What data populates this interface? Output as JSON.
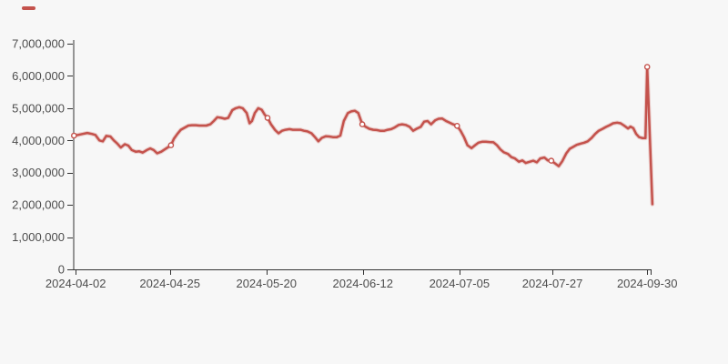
{
  "page": {
    "background": "#f7f7f7"
  },
  "legend": {
    "icon": "line-dash-icon",
    "color": "#c4524c",
    "position": "top-left"
  },
  "chart_data": {
    "type": "line",
    "title": "",
    "grid": false,
    "colors": {
      "line": "#c4524c",
      "marker_fill": "#ffffff",
      "axis": "#333333",
      "label": "#4d4d4d"
    },
    "x_axis": {
      "kind": "time",
      "tick_labels": [
        "2024-04-02",
        "2024-04-25",
        "2024-05-20",
        "2024-06-12",
        "2024-07-05",
        "2024-07-27",
        "2024-09-30"
      ],
      "tick_positions": [
        0.005,
        0.168,
        0.335,
        0.502,
        0.669,
        0.83,
        0.994
      ],
      "closed_end": true
    },
    "y_axis": {
      "tick_labels": [
        "0",
        "1,000,000",
        "2,000,000",
        "3,000,000",
        "4,000,000",
        "5,000,000",
        "6,000,000",
        "7,000,000"
      ],
      "tick_values": [
        0,
        1000000,
        2000000,
        3000000,
        4000000,
        5000000,
        6000000,
        7000000
      ],
      "range": [
        0,
        7000000
      ]
    },
    "marked_points": [
      {
        "date": "2024-04-02",
        "value": 4150000,
        "x": 0.002
      },
      {
        "date": "2024-04-25",
        "value": 3850000,
        "x": 0.17
      },
      {
        "date": "2024-05-20",
        "value": 4700000,
        "x": 0.337
      },
      {
        "date": "2024-06-12",
        "value": 4500000,
        "x": 0.501
      },
      {
        "date": "2024-07-05",
        "value": 4450000,
        "x": 0.665
      },
      {
        "date": "2024-07-27",
        "value": 3370000,
        "x": 0.828
      },
      {
        "date": "2024-09-30",
        "value": 6280000,
        "x": 0.994
      }
    ],
    "series": [
      {
        "name": "",
        "marker": "hollow-circle",
        "points": [
          [
            0.002,
            4150000
          ],
          [
            0.009,
            4170000
          ],
          [
            0.017,
            4200000
          ],
          [
            0.025,
            4230000
          ],
          [
            0.033,
            4200000
          ],
          [
            0.039,
            4170000
          ],
          [
            0.046,
            4000000
          ],
          [
            0.052,
            3970000
          ],
          [
            0.058,
            4140000
          ],
          [
            0.065,
            4120000
          ],
          [
            0.071,
            4000000
          ],
          [
            0.077,
            3900000
          ],
          [
            0.083,
            3780000
          ],
          [
            0.09,
            3880000
          ],
          [
            0.096,
            3840000
          ],
          [
            0.102,
            3700000
          ],
          [
            0.109,
            3650000
          ],
          [
            0.115,
            3660000
          ],
          [
            0.121,
            3620000
          ],
          [
            0.128,
            3700000
          ],
          [
            0.134,
            3750000
          ],
          [
            0.14,
            3700000
          ],
          [
            0.146,
            3600000
          ],
          [
            0.153,
            3650000
          ],
          [
            0.159,
            3720000
          ],
          [
            0.165,
            3790000
          ],
          [
            0.17,
            3850000
          ],
          [
            0.175,
            4050000
          ],
          [
            0.181,
            4200000
          ],
          [
            0.187,
            4330000
          ],
          [
            0.194,
            4400000
          ],
          [
            0.2,
            4460000
          ],
          [
            0.206,
            4470000
          ],
          [
            0.213,
            4470000
          ],
          [
            0.219,
            4460000
          ],
          [
            0.225,
            4460000
          ],
          [
            0.231,
            4460000
          ],
          [
            0.238,
            4500000
          ],
          [
            0.244,
            4600000
          ],
          [
            0.25,
            4720000
          ],
          [
            0.257,
            4700000
          ],
          [
            0.263,
            4670000
          ],
          [
            0.269,
            4700000
          ],
          [
            0.276,
            4940000
          ],
          [
            0.282,
            5000000
          ],
          [
            0.288,
            5030000
          ],
          [
            0.294,
            5000000
          ],
          [
            0.301,
            4850000
          ],
          [
            0.306,
            4530000
          ],
          [
            0.31,
            4600000
          ],
          [
            0.315,
            4850000
          ],
          [
            0.321,
            5000000
          ],
          [
            0.327,
            4950000
          ],
          [
            0.332,
            4800000
          ],
          [
            0.337,
            4700000
          ],
          [
            0.343,
            4500000
          ],
          [
            0.35,
            4320000
          ],
          [
            0.356,
            4220000
          ],
          [
            0.362,
            4300000
          ],
          [
            0.368,
            4330000
          ],
          [
            0.375,
            4350000
          ],
          [
            0.381,
            4330000
          ],
          [
            0.387,
            4330000
          ],
          [
            0.394,
            4330000
          ],
          [
            0.4,
            4300000
          ],
          [
            0.406,
            4280000
          ],
          [
            0.413,
            4220000
          ],
          [
            0.419,
            4100000
          ],
          [
            0.425,
            3970000
          ],
          [
            0.431,
            4080000
          ],
          [
            0.438,
            4130000
          ],
          [
            0.444,
            4120000
          ],
          [
            0.45,
            4100000
          ],
          [
            0.457,
            4100000
          ],
          [
            0.463,
            4150000
          ],
          [
            0.469,
            4600000
          ],
          [
            0.476,
            4850000
          ],
          [
            0.482,
            4900000
          ],
          [
            0.488,
            4920000
          ],
          [
            0.494,
            4850000
          ],
          [
            0.501,
            4500000
          ],
          [
            0.507,
            4420000
          ],
          [
            0.513,
            4360000
          ],
          [
            0.52,
            4330000
          ],
          [
            0.526,
            4320000
          ],
          [
            0.532,
            4300000
          ],
          [
            0.539,
            4300000
          ],
          [
            0.545,
            4330000
          ],
          [
            0.551,
            4350000
          ],
          [
            0.557,
            4400000
          ],
          [
            0.564,
            4480000
          ],
          [
            0.57,
            4500000
          ],
          [
            0.576,
            4480000
          ],
          [
            0.583,
            4420000
          ],
          [
            0.589,
            4300000
          ],
          [
            0.595,
            4360000
          ],
          [
            0.602,
            4420000
          ],
          [
            0.608,
            4580000
          ],
          [
            0.614,
            4600000
          ],
          [
            0.62,
            4500000
          ],
          [
            0.627,
            4620000
          ],
          [
            0.633,
            4670000
          ],
          [
            0.639,
            4680000
          ],
          [
            0.646,
            4600000
          ],
          [
            0.652,
            4550000
          ],
          [
            0.658,
            4500000
          ],
          [
            0.665,
            4450000
          ],
          [
            0.671,
            4300000
          ],
          [
            0.677,
            4100000
          ],
          [
            0.683,
            3850000
          ],
          [
            0.69,
            3760000
          ],
          [
            0.696,
            3850000
          ],
          [
            0.702,
            3930000
          ],
          [
            0.709,
            3960000
          ],
          [
            0.715,
            3960000
          ],
          [
            0.721,
            3950000
          ],
          [
            0.728,
            3940000
          ],
          [
            0.734,
            3850000
          ],
          [
            0.74,
            3720000
          ],
          [
            0.746,
            3630000
          ],
          [
            0.753,
            3580000
          ],
          [
            0.759,
            3480000
          ],
          [
            0.765,
            3440000
          ],
          [
            0.772,
            3340000
          ],
          [
            0.778,
            3380000
          ],
          [
            0.784,
            3300000
          ],
          [
            0.791,
            3340000
          ],
          [
            0.797,
            3370000
          ],
          [
            0.803,
            3320000
          ],
          [
            0.809,
            3440000
          ],
          [
            0.816,
            3470000
          ],
          [
            0.822,
            3380000
          ],
          [
            0.828,
            3370000
          ],
          [
            0.835,
            3280000
          ],
          [
            0.841,
            3200000
          ],
          [
            0.847,
            3350000
          ],
          [
            0.854,
            3600000
          ],
          [
            0.86,
            3740000
          ],
          [
            0.866,
            3800000
          ],
          [
            0.872,
            3860000
          ],
          [
            0.879,
            3900000
          ],
          [
            0.885,
            3930000
          ],
          [
            0.891,
            3970000
          ],
          [
            0.898,
            4080000
          ],
          [
            0.904,
            4200000
          ],
          [
            0.91,
            4300000
          ],
          [
            0.917,
            4360000
          ],
          [
            0.923,
            4420000
          ],
          [
            0.929,
            4470000
          ],
          [
            0.935,
            4530000
          ],
          [
            0.942,
            4550000
          ],
          [
            0.948,
            4530000
          ],
          [
            0.954,
            4460000
          ],
          [
            0.961,
            4370000
          ],
          [
            0.965,
            4430000
          ],
          [
            0.97,
            4380000
          ],
          [
            0.975,
            4200000
          ],
          [
            0.98,
            4100000
          ],
          [
            0.986,
            4070000
          ],
          [
            0.991,
            4070000
          ],
          [
            0.994,
            6280000
          ],
          [
            1.003,
            2020000
          ]
        ]
      }
    ]
  }
}
